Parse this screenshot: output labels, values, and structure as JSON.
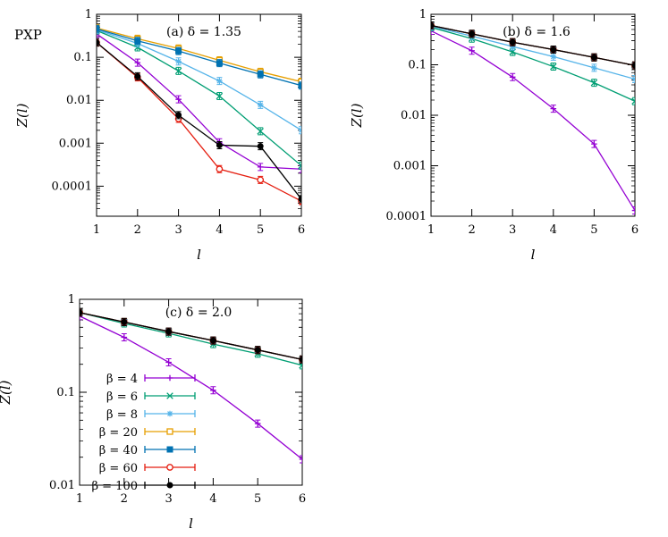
{
  "figure_label": "PXP",
  "legend": {
    "prefix": "β = ",
    "entries": [
      {
        "name": "β = 4",
        "value": "4"
      },
      {
        "name": "β = 6",
        "value": "6"
      },
      {
        "name": "β = 8",
        "value": "8"
      },
      {
        "name": "β = 20",
        "value": "20"
      },
      {
        "name": "β = 40",
        "value": "40"
      },
      {
        "name": "β = 60",
        "value": "60"
      },
      {
        "name": "β = 100",
        "value": "100"
      }
    ]
  },
  "series_styles": [
    {
      "color": "#9400d3",
      "marker": "plus"
    },
    {
      "color": "#009e73",
      "marker": "cross"
    },
    {
      "color": "#56b4e9",
      "marker": "star"
    },
    {
      "color": "#e69f00",
      "marker": "square-open"
    },
    {
      "color": "#0072b2",
      "marker": "square-filled"
    },
    {
      "color": "#e51e10",
      "marker": "circle-open"
    },
    {
      "color": "#000000",
      "marker": "circle-filled"
    }
  ],
  "chart_data": [
    {
      "type": "line",
      "panel": "a",
      "title": "(a)   δ = 1.35",
      "xlabel": "l",
      "ylabel": "Z(l)",
      "yscale": "log",
      "xlim": [
        1,
        6
      ],
      "ylim": [
        2e-05,
        1
      ],
      "x": [
        1,
        2,
        3,
        4,
        5,
        6
      ],
      "xticks": [
        "1",
        "2",
        "3",
        "4",
        "5",
        "6"
      ],
      "yticks": [
        {
          "value": 1,
          "label": "1"
        },
        {
          "value": 0.1,
          "label": "0.1"
        },
        {
          "value": 0.01,
          "label": "0.01"
        },
        {
          "value": 0.001,
          "label": "0.001"
        },
        {
          "value": 0.0001,
          "label": "0.0001"
        }
      ],
      "series": [
        {
          "name": "β = 4",
          "values": [
            0.35,
            0.075,
            0.0105,
            0.00105,
            0.00028,
            0.00025
          ]
        },
        {
          "name": "β = 6",
          "values": [
            0.42,
            0.17,
            0.048,
            0.0125,
            0.0019,
            0.0003
          ]
        },
        {
          "name": "β = 8",
          "values": [
            0.44,
            0.21,
            0.08,
            0.028,
            0.0078,
            0.002
          ]
        },
        {
          "name": "β = 20",
          "values": [
            0.48,
            0.27,
            0.16,
            0.085,
            0.046,
            0.027
          ]
        },
        {
          "name": "β = 40",
          "values": [
            0.46,
            0.24,
            0.14,
            0.073,
            0.04,
            0.022
          ]
        },
        {
          "name": "β = 60",
          "values": [
            0.22,
            0.034,
            0.0037,
            0.00025,
            0.00014,
            4.5e-05
          ]
        },
        {
          "name": "β = 100",
          "values": [
            0.22,
            0.036,
            0.0045,
            0.0009,
            0.00085,
            5e-05
          ]
        }
      ]
    },
    {
      "type": "line",
      "panel": "b",
      "title": "(b) δ = 1.6",
      "xlabel": "l",
      "ylabel": "Z(l)",
      "yscale": "log",
      "xlim": [
        1,
        6
      ],
      "ylim": [
        0.0001,
        1
      ],
      "x": [
        1,
        2,
        3,
        4,
        5,
        6
      ],
      "xticks": [
        "1",
        "2",
        "3",
        "4",
        "5",
        "6"
      ],
      "yticks": [
        {
          "value": 1,
          "label": "1"
        },
        {
          "value": 0.1,
          "label": "0.1"
        },
        {
          "value": 0.01,
          "label": "0.01"
        },
        {
          "value": 0.001,
          "label": "0.001"
        },
        {
          "value": 0.0001,
          "label": "0.0001"
        }
      ],
      "series": [
        {
          "name": "β = 4",
          "values": [
            0.47,
            0.19,
            0.057,
            0.0135,
            0.0027,
            0.00013
          ]
        },
        {
          "name": "β = 6",
          "values": [
            0.55,
            0.33,
            0.18,
            0.092,
            0.044,
            0.019
          ]
        },
        {
          "name": "β = 8",
          "values": [
            0.58,
            0.37,
            0.23,
            0.145,
            0.087,
            0.052
          ]
        },
        {
          "name": "β = 20",
          "values": [
            0.6,
            0.41,
            0.28,
            0.2,
            0.14,
            0.097
          ]
        },
        {
          "name": "β = 40",
          "values": [
            0.6,
            0.41,
            0.28,
            0.2,
            0.14,
            0.097
          ]
        },
        {
          "name": "β = 60",
          "values": [
            0.6,
            0.41,
            0.28,
            0.2,
            0.14,
            0.097
          ]
        },
        {
          "name": "β = 100",
          "values": [
            0.6,
            0.41,
            0.28,
            0.2,
            0.14,
            0.097
          ]
        }
      ]
    },
    {
      "type": "line",
      "panel": "c",
      "title": "(c)   δ = 2.0",
      "xlabel": "l",
      "ylabel": "Z(l)",
      "yscale": "log",
      "xlim": [
        1,
        6
      ],
      "ylim": [
        0.01,
        1
      ],
      "x": [
        1,
        2,
        3,
        4,
        5,
        6
      ],
      "xticks": [
        "1",
        "2",
        "3",
        "4",
        "5",
        "6"
      ],
      "yticks": [
        {
          "value": 1,
          "label": "1"
        },
        {
          "value": 0.1,
          "label": "0.1"
        },
        {
          "value": 0.01,
          "label": "0.01"
        }
      ],
      "series": [
        {
          "name": "β = 4",
          "values": [
            0.66,
            0.39,
            0.21,
            0.105,
            0.046,
            0.019
          ]
        },
        {
          "name": "β = 6",
          "values": [
            0.72,
            0.55,
            0.43,
            0.33,
            0.26,
            0.195
          ]
        },
        {
          "name": "β = 8",
          "values": [
            0.72,
            0.57,
            0.45,
            0.36,
            0.285,
            0.225
          ]
        },
        {
          "name": "β = 20",
          "values": [
            0.72,
            0.57,
            0.45,
            0.36,
            0.285,
            0.225
          ]
        },
        {
          "name": "β = 40",
          "values": [
            0.72,
            0.57,
            0.45,
            0.36,
            0.285,
            0.225
          ]
        },
        {
          "name": "β = 60",
          "values": [
            0.72,
            0.57,
            0.45,
            0.36,
            0.285,
            0.225
          ]
        },
        {
          "name": "β = 100",
          "values": [
            0.72,
            0.57,
            0.45,
            0.36,
            0.285,
            0.225
          ]
        }
      ]
    }
  ]
}
